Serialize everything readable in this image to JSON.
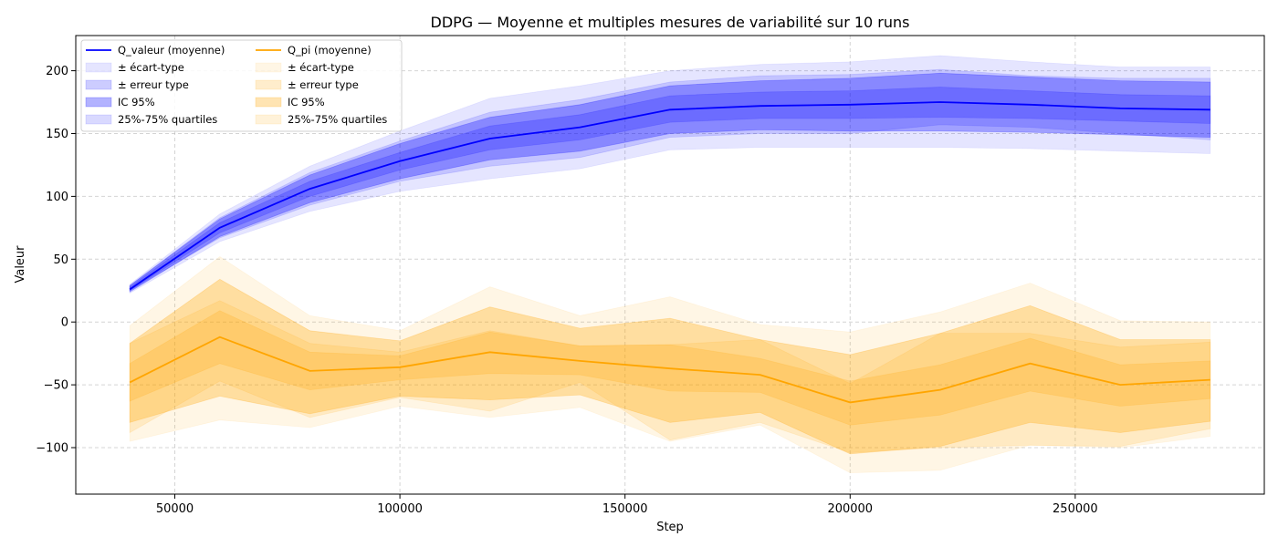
{
  "chart_data": {
    "type": "line",
    "title": "DDPG — Moyenne et multiples mesures de variabilité sur 10 runs",
    "xlabel": "Step",
    "ylabel": "Valeur",
    "xlim": [
      28000,
      292000
    ],
    "ylim": [
      -137,
      228
    ],
    "x_ticks": [
      50000,
      100000,
      150000,
      200000,
      250000
    ],
    "x_tick_labels": [
      "50000",
      "100000",
      "150000",
      "200000",
      "250000"
    ],
    "y_ticks": [
      -100,
      -50,
      0,
      50,
      100,
      150,
      200
    ],
    "y_tick_labels": [
      "−100",
      "−50",
      "0",
      "50",
      "100",
      "150",
      "200"
    ],
    "grid": true,
    "legend_position": "top-left",
    "x": [
      40000,
      60000,
      80000,
      100000,
      120000,
      140000,
      160000,
      180000,
      200000,
      220000,
      240000,
      260000,
      280000
    ],
    "series": [
      {
        "name": "Q_valeur (moyenne)",
        "color": "#0000ff",
        "mean": [
          26,
          75,
          106,
          128,
          146,
          155,
          169,
          172,
          173,
          175,
          173,
          170,
          169
        ],
        "bands": [
          {
            "name": "± écart-type",
            "lower": [
              23,
              64,
              88,
              104,
              114,
              122,
              137,
              139,
              139,
              139,
              138,
              136,
              134
            ],
            "upper": [
              30,
              86,
              124,
              152,
              178,
              188,
              200,
              205,
              207,
              212,
              207,
              203,
              203
            ],
            "opacity": 0.1
          },
          {
            "name": "± erreur type",
            "lower": [
              25,
              71,
              100,
              121,
              137,
              145,
              159,
              162,
              162,
              163,
              162,
              160,
              158
            ],
            "upper": [
              28,
              79,
              112,
              135,
              156,
              165,
              180,
              183,
              184,
              187,
              184,
              181,
              180
            ],
            "opacity": 0.2
          },
          {
            "name": "IC 95%",
            "lower": [
              24,
              68,
              95,
              114,
              129,
              136,
              150,
              153,
              152,
              152,
              151,
              149,
              147
            ],
            "upper": [
              29,
              82,
              117,
              142,
              163,
              173,
              188,
              192,
              194,
              198,
              195,
              192,
              191
            ],
            "opacity": 0.3
          },
          {
            "name": "25%-75% quartiles",
            "lower": [
              25,
              67,
              93,
              112,
              124,
              131,
              147,
              150,
              150,
              157,
              155,
              150,
              145
            ],
            "upper": [
              29,
              83,
              119,
              144,
              167,
              177,
              191,
              196,
              197,
              201,
              196,
              194,
              194
            ],
            "opacity": 0.15
          }
        ]
      },
      {
        "name": "Q_pi (moyenne)",
        "color": "#ffa500",
        "mean": [
          -48,
          -12,
          -39,
          -36,
          -24,
          -31,
          -37,
          -42,
          -64,
          -54,
          -33,
          -50,
          -46
        ],
        "bands": [
          {
            "name": "± écart-type",
            "lower": [
              -95,
              -78,
              -84,
              -67,
              -76,
              -68,
              -95,
              -82,
              -120,
              -118,
              -98,
              -100,
              -91
            ],
            "upper": [
              -3,
              52,
              5,
              -7,
              28,
              5,
              20,
              -2,
              -8,
              8,
              31,
              1,
              0
            ],
            "opacity": 0.1
          },
          {
            "name": "± erreur type",
            "lower": [
              -63,
              -33,
              -54,
              -46,
              -41,
              -42,
              -55,
              -56,
              -82,
              -74,
              -55,
              -67,
              -61
            ],
            "upper": [
              -33,
              9,
              -24,
              -27,
              -8,
              -19,
              -18,
              -29,
              -47,
              -34,
              -13,
              -34,
              -31
            ],
            "opacity": 0.2
          },
          {
            "name": "IC 95%",
            "lower": [
              -80,
              -59,
              -73,
              -59,
              -62,
              -58,
              -80,
              -72,
              -105,
              -99,
              -80,
              -88,
              -79
            ],
            "upper": [
              -17,
              34,
              -7,
              -15,
              12,
              -5,
              3,
              -14,
              -26,
              -9,
              13,
              -14,
              -14
            ],
            "opacity": 0.3
          },
          {
            "name": "25%-75% quartiles",
            "lower": [
              -88,
              -47,
              -76,
              -60,
              -71,
              -48,
              -94,
              -80,
              -104,
              -100,
              -98,
              -99,
              -85
            ],
            "upper": [
              -17,
              17,
              -17,
              -24,
              -7,
              -19,
              -18,
              -14,
              -49,
              -9,
              -9,
              -20,
              -16
            ],
            "opacity": 0.15
          }
        ]
      }
    ]
  }
}
